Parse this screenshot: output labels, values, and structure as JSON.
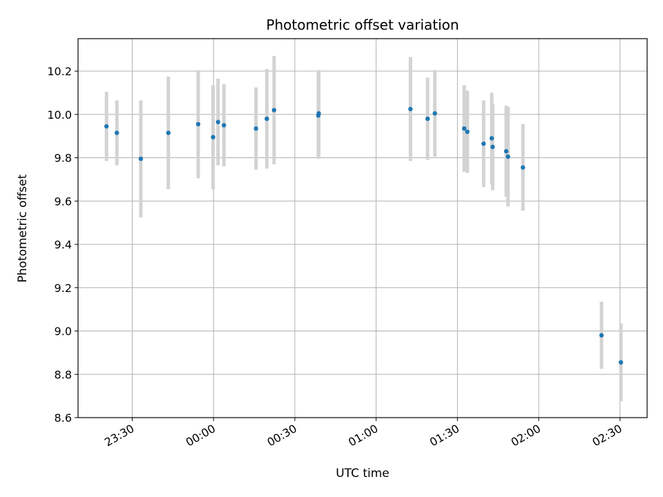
{
  "chart_data": {
    "type": "scatter",
    "title": "Photometric offset variation",
    "xlabel": "UTC time",
    "ylabel": "Photometric offset",
    "grid": true,
    "legend": "none",
    "x_date": "2023-01-01",
    "xlim": [
      "2023-01-01T23:10:00",
      "2023-01-02T02:40:00"
    ],
    "ylim": [
      8.6,
      10.35
    ],
    "x_ticks": [
      {
        "t": "2023-01-01T23:30:00",
        "label": "23:30"
      },
      {
        "t": "2023-01-02T00:00:00",
        "label": "00:00"
      },
      {
        "t": "2023-01-02T00:30:00",
        "label": "00:30"
      },
      {
        "t": "2023-01-02T01:00:00",
        "label": "01:00"
      },
      {
        "t": "2023-01-02T01:30:00",
        "label": "01:30"
      },
      {
        "t": "2023-01-02T02:00:00",
        "label": "02:00"
      },
      {
        "t": "2023-01-02T02:30:00",
        "label": "02:30"
      }
    ],
    "y_ticks": [
      "8.6",
      "8.8",
      "9.0",
      "9.2",
      "9.4",
      "9.6",
      "9.8",
      "10.0",
      "10.2"
    ],
    "colors": {
      "point": "#1f77b4",
      "errorbar": "#d3d3d3",
      "grid": "#b0b0b0"
    },
    "points": [
      {
        "t": "2023-01-01T23:20:30",
        "y": 9.945,
        "err": 0.16
      },
      {
        "t": "2023-01-01T23:24:20",
        "y": 9.915,
        "err": 0.15
      },
      {
        "t": "2023-01-01T23:33:10",
        "y": 9.795,
        "err": 0.27
      },
      {
        "t": "2023-01-01T23:43:20",
        "y": 9.915,
        "err": 0.26
      },
      {
        "t": "2023-01-01T23:54:20",
        "y": 9.955,
        "err": 0.25
      },
      {
        "t": "2023-01-01T23:59:50",
        "y": 9.895,
        "err": 0.24
      },
      {
        "t": "2023-01-02T00:01:40",
        "y": 9.965,
        "err": 0.2
      },
      {
        "t": "2023-01-02T00:03:50",
        "y": 9.95,
        "err": 0.19
      },
      {
        "t": "2023-01-02T00:15:40",
        "y": 9.935,
        "err": 0.19
      },
      {
        "t": "2023-01-02T00:19:40",
        "y": 9.98,
        "err": 0.23
      },
      {
        "t": "2023-01-02T00:22:20",
        "y": 10.02,
        "err": 0.25
      },
      {
        "t": "2023-01-02T00:38:40",
        "y": 9.995,
        "err": 0.2
      },
      {
        "t": "2023-01-02T00:38:50",
        "y": 10.005,
        "err": 0.2
      },
      {
        "t": "2023-01-02T01:12:40",
        "y": 10.025,
        "err": 0.24
      },
      {
        "t": "2023-01-02T01:19:00",
        "y": 9.98,
        "err": 0.19
      },
      {
        "t": "2023-01-02T01:21:40",
        "y": 10.005,
        "err": 0.2
      },
      {
        "t": "2023-01-02T01:32:30",
        "y": 9.935,
        "err": 0.2
      },
      {
        "t": "2023-01-02T01:33:40",
        "y": 9.92,
        "err": 0.19
      },
      {
        "t": "2023-01-02T01:39:40",
        "y": 9.865,
        "err": 0.2
      },
      {
        "t": "2023-01-02T01:42:40",
        "y": 9.89,
        "err": 0.21
      },
      {
        "t": "2023-01-02T01:43:00",
        "y": 9.85,
        "err": 0.2
      },
      {
        "t": "2023-01-02T01:48:00",
        "y": 9.83,
        "err": 0.21
      },
      {
        "t": "2023-01-02T01:48:40",
        "y": 9.805,
        "err": 0.23
      },
      {
        "t": "2023-01-02T01:54:10",
        "y": 9.755,
        "err": 0.2
      },
      {
        "t": "2023-01-02T02:23:10",
        "y": 8.98,
        "err": 0.155
      },
      {
        "t": "2023-01-02T02:30:20",
        "y": 8.855,
        "err": 0.18
      }
    ]
  }
}
